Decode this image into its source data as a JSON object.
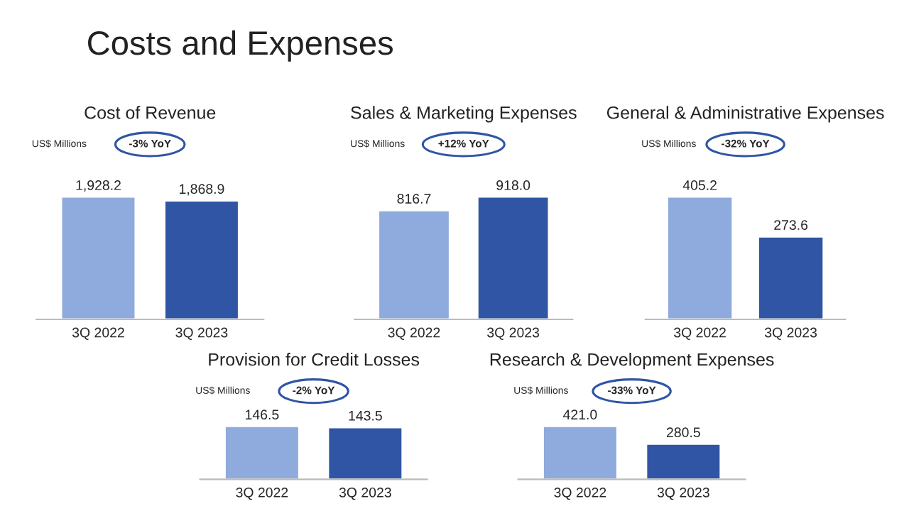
{
  "chart_data": [
    {
      "type": "other",
      "title": "Costs and Expenses"
    },
    {
      "type": "bar",
      "title": "Cost of Revenue",
      "annotations": [
        "US$ Millions",
        "-3% YoY"
      ],
      "categories": [
        "3Q 2022",
        "3Q 2023"
      ],
      "values": [
        1928.2,
        1868.9
      ],
      "colors": [
        "#8faadc",
        "#2f55a4"
      ],
      "value_labels": [
        "1,928.2",
        "1,868.9"
      ]
    },
    {
      "type": "bar",
      "title": "Sales & Marketing Expenses",
      "annotations": [
        "US$ Millions",
        "+12% YoY"
      ],
      "categories": [
        "3Q 2022",
        "3Q 2023"
      ],
      "values": [
        816.7,
        918.0
      ],
      "colors": [
        "#8faadc",
        "#2f55a4"
      ],
      "value_labels": [
        "816.7",
        "918.0"
      ]
    },
    {
      "type": "bar",
      "title": "General & Administrative Expenses",
      "annotations": [
        "US$ Millions",
        "-32% YoY"
      ],
      "categories": [
        "3Q 2022",
        "3Q 2023"
      ],
      "values": [
        405.2,
        273.6
      ],
      "colors": [
        "#8faadc",
        "#2f55a4"
      ],
      "data_labels": true
    },
    {
      "type": "bar",
      "title": "Provision for Credit Losses",
      "annotations": [
        "US$ Millions",
        "-2% YoY"
      ],
      "categories": [
        "3Q 2022",
        "3Q 2023"
      ],
      "values": [
        146.5,
        143.5
      ],
      "colors": [
        "#8faadc",
        "#2f55a4"
      ],
      "data_labels": true
    },
    {
      "type": "bar",
      "title": "Research & Development Expenses",
      "annotations": [
        "US$ Millions",
        "-33% YoY"
      ],
      "categories": [
        "3Q 2022",
        "3Q 2023"
      ],
      "values": [
        421.0,
        280.5
      ],
      "colors": [
        "#8faadc",
        "#2f55a4"
      ],
      "value_labels": [
        "421.0",
        "280.5"
      ]
    }
  ]
}
